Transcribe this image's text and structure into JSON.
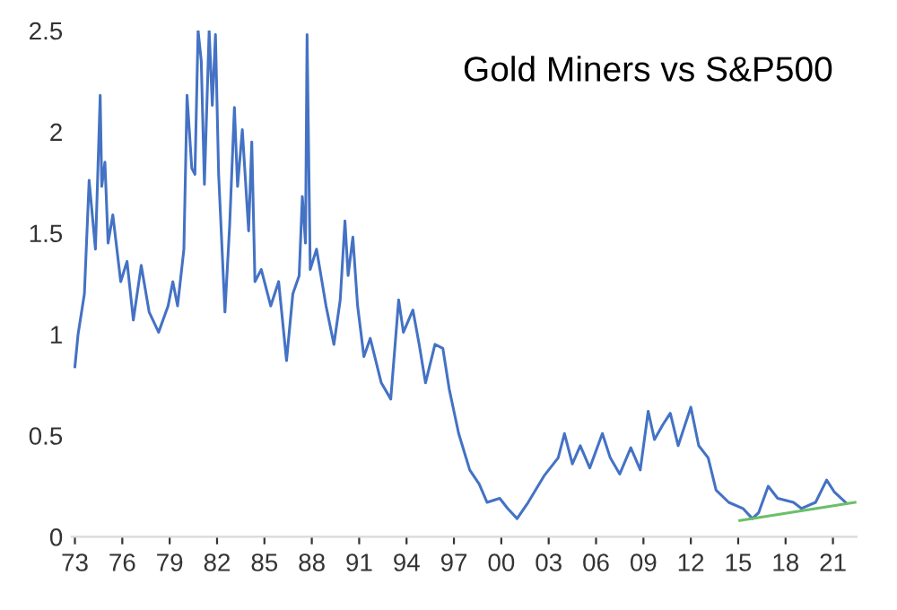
{
  "chart_data": {
    "type": "line",
    "title": "Gold Miners vs S&P500",
    "xlim": [
      1972.8,
      2022.5
    ],
    "ylim": [
      0,
      2.5
    ],
    "xticks": [
      {
        "value": 1973,
        "label": "73"
      },
      {
        "value": 1976,
        "label": "76"
      },
      {
        "value": 1979,
        "label": "79"
      },
      {
        "value": 1982,
        "label": "82"
      },
      {
        "value": 1985,
        "label": "85"
      },
      {
        "value": 1988,
        "label": "88"
      },
      {
        "value": 1991,
        "label": "91"
      },
      {
        "value": 1994,
        "label": "94"
      },
      {
        "value": 1997,
        "label": "97"
      },
      {
        "value": 2000,
        "label": "00"
      },
      {
        "value": 2003,
        "label": "03"
      },
      {
        "value": 2006,
        "label": "06"
      },
      {
        "value": 2009,
        "label": "09"
      },
      {
        "value": 2012,
        "label": "12"
      },
      {
        "value": 2015,
        "label": "15"
      },
      {
        "value": 2018,
        "label": "18"
      },
      {
        "value": 2021,
        "label": "21"
      }
    ],
    "yticks": [
      0,
      0.5,
      1,
      1.5,
      2,
      2.5
    ],
    "grid": false,
    "series": [
      {
        "color": "#4472c4",
        "x": [
          1973.0,
          1973.2,
          1973.6,
          1973.9,
          1974.3,
          1974.6,
          1974.7,
          1974.9,
          1975.1,
          1975.4,
          1975.9,
          1976.3,
          1976.7,
          1977.2,
          1977.7,
          1978.3,
          1978.9,
          1979.2,
          1979.5,
          1979.9,
          1980.1,
          1980.4,
          1980.6,
          1980.8,
          1981.0,
          1981.2,
          1981.5,
          1981.7,
          1981.9,
          1982.1,
          1982.5,
          1982.8,
          1983.1,
          1983.3,
          1983.6,
          1984.0,
          1984.2,
          1984.4,
          1984.8,
          1985.4,
          1985.9,
          1986.4,
          1986.8,
          1987.2,
          1987.4,
          1987.6,
          1987.7,
          1987.9,
          1988.3,
          1988.9,
          1989.4,
          1989.8,
          1990.1,
          1990.3,
          1990.6,
          1990.9,
          1991.3,
          1991.7,
          1992.4,
          1993.0,
          1993.5,
          1993.8,
          1994.4,
          1994.8,
          1995.2,
          1995.8,
          1996.3,
          1996.7,
          1997.3,
          1998.0,
          1998.6,
          1999.1,
          1999.9,
          2000.4,
          2001.0,
          2001.7,
          2002.7,
          2003.6,
          2004.0,
          2004.5,
          2005.0,
          2005.6,
          2006.4,
          2006.9,
          2007.5,
          2008.2,
          2008.8,
          2009.3,
          2009.7,
          2010.2,
          2010.7,
          2011.2,
          2012.0,
          2012.5,
          2013.1,
          2013.6,
          2014.4,
          2015.3,
          2015.9,
          2016.3,
          2016.9,
          2017.5,
          2018.5,
          2019.0,
          2019.9,
          2020.6,
          2021.1,
          2021.8
        ],
        "values": [
          0.84,
          1.0,
          1.2,
          1.76,
          1.42,
          2.18,
          1.73,
          1.85,
          1.45,
          1.59,
          1.26,
          1.36,
          1.07,
          1.34,
          1.11,
          1.01,
          1.14,
          1.26,
          1.14,
          1.42,
          2.18,
          1.82,
          1.79,
          2.5,
          2.35,
          1.74,
          2.5,
          2.13,
          2.48,
          1.79,
          1.11,
          1.54,
          2.12,
          1.73,
          2.01,
          1.51,
          1.95,
          1.26,
          1.32,
          1.14,
          1.26,
          0.87,
          1.2,
          1.29,
          1.68,
          1.45,
          2.48,
          1.32,
          1.42,
          1.14,
          0.95,
          1.17,
          1.56,
          1.29,
          1.48,
          1.14,
          0.89,
          0.98,
          0.76,
          0.68,
          1.17,
          1.01,
          1.12,
          0.95,
          0.76,
          0.95,
          0.93,
          0.73,
          0.51,
          0.33,
          0.26,
          0.17,
          0.19,
          0.14,
          0.09,
          0.17,
          0.3,
          0.39,
          0.51,
          0.36,
          0.45,
          0.34,
          0.51,
          0.39,
          0.31,
          0.44,
          0.33,
          0.62,
          0.48,
          0.55,
          0.61,
          0.45,
          0.64,
          0.45,
          0.39,
          0.23,
          0.17,
          0.14,
          0.09,
          0.12,
          0.25,
          0.19,
          0.17,
          0.14,
          0.17,
          0.28,
          0.22,
          0.17
        ]
      },
      {
        "color": "#6abf69",
        "x": [
          2015.1,
          2022.4
        ],
        "values": [
          0.08,
          0.17
        ]
      }
    ]
  }
}
